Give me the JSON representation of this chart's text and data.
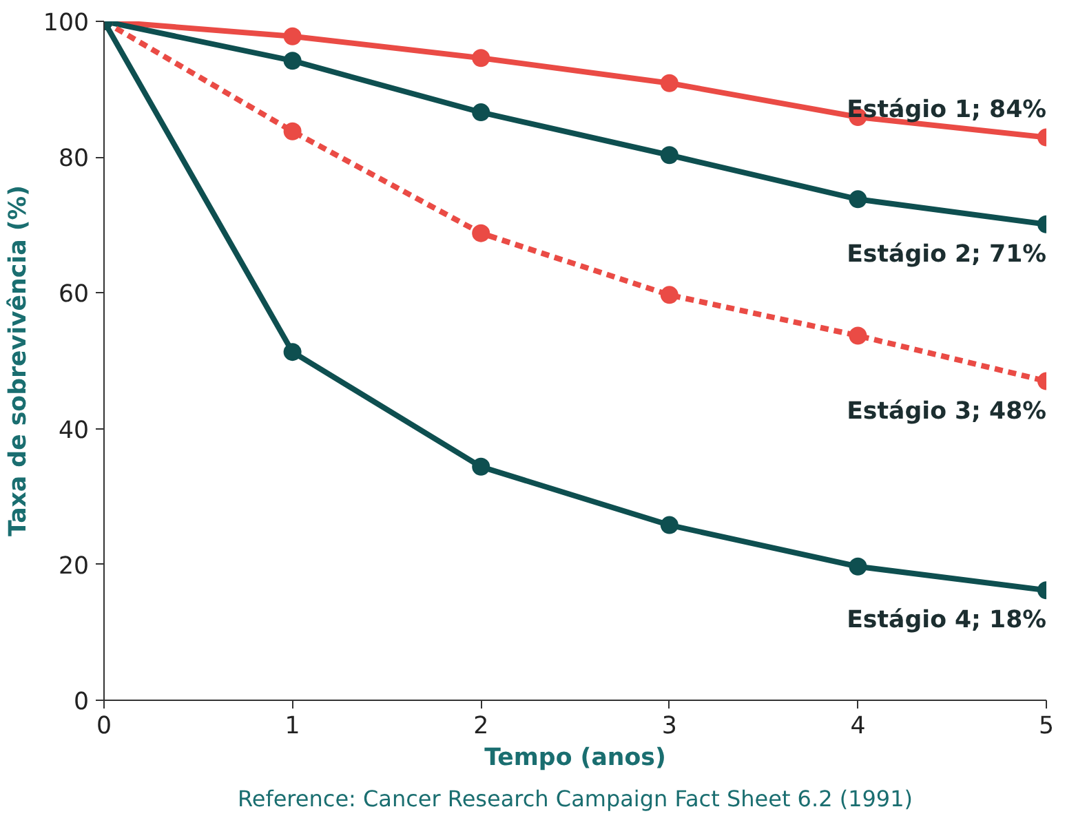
{
  "chart_data": {
    "type": "line",
    "xlabel": "Tempo (anos)",
    "ylabel": "Taxa de sobrevivência (%)",
    "x": [
      0,
      1,
      2,
      3,
      4,
      5
    ],
    "xlim": [
      0,
      5
    ],
    "xticks": [
      0,
      1,
      2,
      3,
      4,
      5
    ],
    "ylim": [
      0,
      100
    ],
    "yticks": [
      0,
      20,
      40,
      60,
      80,
      100
    ],
    "grid": false,
    "marker": "circle",
    "series": [
      {
        "name": "Estágio 1; 84%",
        "color": "#ea4b45",
        "line_style": "solid",
        "values": [
          100,
          97.8,
          94.6,
          90.9,
          85.9,
          82.9
        ]
      },
      {
        "name": "Estágio 2; 71%",
        "color": "#0e4f50",
        "line_style": "solid",
        "values": [
          100,
          94.2,
          86.6,
          80.3,
          73.8,
          70.1
        ]
      },
      {
        "name": "Estágio 3; 48%",
        "color": "#ea4b45",
        "line_style": "dashed",
        "values": [
          100,
          83.8,
          68.8,
          59.7,
          53.7,
          47.0
        ]
      },
      {
        "name": "Estágio 4; 18%",
        "color": "#0e4f50",
        "line_style": "solid",
        "values": [
          100,
          51.3,
          34.4,
          25.8,
          19.7,
          16.2
        ]
      }
    ],
    "annotations": [
      "Reference: Cancer Research Campaign Fact Sheet 6.2 (1991)"
    ]
  }
}
